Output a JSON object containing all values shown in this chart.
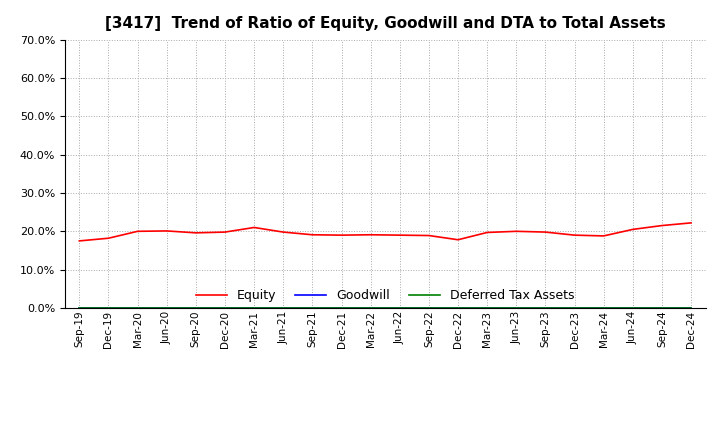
{
  "title": "[3417]  Trend of Ratio of Equity, Goodwill and DTA to Total Assets",
  "xlabels": [
    "Sep-19",
    "Dec-19",
    "Mar-20",
    "Jun-20",
    "Sep-20",
    "Dec-20",
    "Mar-21",
    "Jun-21",
    "Sep-21",
    "Dec-21",
    "Mar-22",
    "Jun-22",
    "Sep-22",
    "Dec-22",
    "Mar-23",
    "Jun-23",
    "Sep-23",
    "Dec-23",
    "Mar-24",
    "Jun-24",
    "Sep-24",
    "Dec-24"
  ],
  "equity": [
    0.175,
    0.182,
    0.2,
    0.201,
    0.196,
    0.198,
    0.21,
    0.198,
    0.191,
    0.19,
    0.191,
    0.19,
    0.189,
    0.178,
    0.197,
    0.2,
    0.198,
    0.19,
    0.188,
    0.205,
    0.215,
    0.222
  ],
  "goodwill": [
    0.0,
    0.0,
    0.0,
    0.0,
    0.0,
    0.0,
    0.0,
    0.0,
    0.0,
    0.0,
    0.0,
    0.0,
    0.0,
    0.0,
    0.0,
    0.0,
    0.0,
    0.0,
    0.0,
    0.0,
    0.0,
    0.0
  ],
  "dta": [
    0.0,
    0.0,
    0.0,
    0.0,
    0.0,
    0.0,
    0.0,
    0.0,
    0.0,
    0.0,
    0.0,
    0.0,
    0.0,
    0.0,
    0.0,
    0.0,
    0.0,
    0.0,
    0.0,
    0.0,
    0.0,
    0.0
  ],
  "equity_color": "#FF0000",
  "goodwill_color": "#0000FF",
  "dta_color": "#008000",
  "ylim": [
    0.0,
    0.7
  ],
  "yticks": [
    0.0,
    0.1,
    0.2,
    0.3,
    0.4,
    0.5,
    0.6,
    0.7
  ],
  "background_color": "#FFFFFF",
  "plot_bg_color": "#FFFFFF",
  "grid_color": "#AAAAAA",
  "title_fontsize": 11,
  "legend_labels": [
    "Equity",
    "Goodwill",
    "Deferred Tax Assets"
  ]
}
